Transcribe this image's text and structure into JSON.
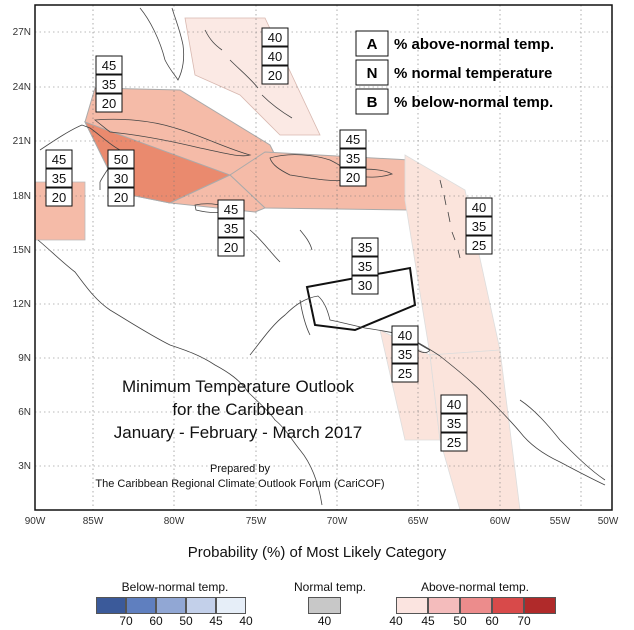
{
  "map": {
    "lat_labels": [
      "27N",
      "24N",
      "21N",
      "18N",
      "15N",
      "12N",
      "9N",
      "6N",
      "3N"
    ],
    "lon_labels": [
      "90W",
      "85W",
      "80W",
      "75W",
      "70W",
      "65W",
      "60W",
      "55W",
      "50W"
    ],
    "title_lines": [
      "Minimum Temperature Outlook",
      "for the Caribbean",
      "January - February - March 2017"
    ],
    "prepared_lines": [
      "Prepared by",
      "The Caribbean Regional Climate Outlook Forum (CariCOF)"
    ]
  },
  "key": [
    {
      "letter": "A",
      "label": "% above-normal temp."
    },
    {
      "letter": "N",
      "label": "% normal temperature"
    },
    {
      "letter": "B",
      "label": "% below-normal temp."
    }
  ],
  "regions": [
    {
      "id": "florida-bahamas",
      "above": "40",
      "normal": "40",
      "below": "20",
      "color": "#fbe9e4"
    },
    {
      "id": "cuba",
      "above": "45",
      "normal": "35",
      "below": "20",
      "color": "#f5bba8"
    },
    {
      "id": "cayman-jamaica",
      "above": "50",
      "normal": "30",
      "below": "20",
      "color": "#ea8a6e"
    },
    {
      "id": "belize",
      "above": "45",
      "normal": "35",
      "below": "20",
      "color": "#f5bba8"
    },
    {
      "id": "hispaniola-puerto-rico",
      "above": "45",
      "normal": "35",
      "below": "20",
      "color": "#f5bba8"
    },
    {
      "id": "south-jamaica",
      "above": "45",
      "normal": "35",
      "below": "20",
      "color": "#f5bba8"
    },
    {
      "id": "eastern-caribbean",
      "above": "40",
      "normal": "35",
      "below": "25",
      "color": "#fbe4dc"
    },
    {
      "id": "abc-islands",
      "above": "35",
      "normal": "35",
      "below": "30",
      "color": "#ffffff"
    },
    {
      "id": "trinidad",
      "above": "40",
      "normal": "35",
      "below": "25",
      "color": "#fbe4dc"
    },
    {
      "id": "guianas",
      "above": "40",
      "normal": "35",
      "below": "25",
      "color": "#fbe4dc"
    }
  ],
  "legend": {
    "title": "Probability (%) of Most Likely Category",
    "below": {
      "label": "Below-normal temp.",
      "ticks": [
        "70",
        "60",
        "50",
        "45",
        "40"
      ],
      "colors": [
        "#3b5a9a",
        "#5f7fbf",
        "#91a7d4",
        "#c3d0ea",
        "#e6eef8"
      ]
    },
    "normal": {
      "label": "Normal temp.",
      "ticks": [
        "40"
      ],
      "colors": [
        "#c8c8c8"
      ]
    },
    "above": {
      "label": "Above-normal temp.",
      "ticks": [
        "40",
        "45",
        "50",
        "60",
        "70"
      ],
      "colors": [
        "#fbe4e0",
        "#f4bcbc",
        "#ec8c8c",
        "#d84a4a",
        "#b02a2a"
      ]
    }
  }
}
